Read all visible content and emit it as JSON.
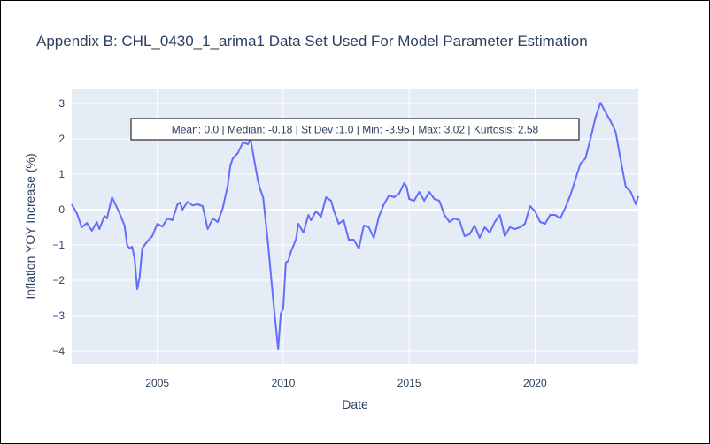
{
  "chart_data": {
    "type": "line",
    "title": "Appendix B: CHL_0430_1_arima1 Data Set Used For Model Parameter Estimation",
    "xlabel": "Date",
    "ylabel": "Inflation YOY Increase (%)",
    "annotation": "Mean: 0.0 | Median: -0.18 | St Dev :1.0 | Min: -3.95 | Max: 3.02 | Kurtosis: 2.58",
    "xlim": [
      2001.6,
      2024.1
    ],
    "ylim": [
      -4.35,
      3.4
    ],
    "x_ticks": [
      2005,
      2010,
      2015,
      2020
    ],
    "x_tick_labels": [
      "2005",
      "2010",
      "2015",
      "2020"
    ],
    "y_ticks": [
      3,
      2,
      1,
      0,
      -1,
      -2,
      -3,
      -4
    ],
    "y_tick_labels": [
      "3",
      "2",
      "1",
      "0",
      "−1",
      "−2",
      "−3",
      "−4"
    ],
    "grid": true,
    "colors": {
      "line": "#636efa",
      "plot_bg": "#e5ecf6",
      "text": "#2a3f5f"
    },
    "series": [
      {
        "x": [
          2001.6,
          2001.8,
          2002.0,
          2002.2,
          2002.4,
          2002.6,
          2002.7,
          2002.9,
          2003.0,
          2003.2,
          2003.4,
          2003.5,
          2003.7,
          2003.8,
          2003.9,
          2004.0,
          2004.1,
          2004.2,
          2004.3,
          2004.4,
          2004.6,
          2004.8,
          2005.0,
          2005.2,
          2005.4,
          2005.6,
          2005.8,
          2005.9,
          2006.0,
          2006.2,
          2006.4,
          2006.6,
          2006.8,
          2007.0,
          2007.2,
          2007.4,
          2007.6,
          2007.8,
          2007.9,
          2008.0,
          2008.2,
          2008.4,
          2008.6,
          2008.7,
          2008.9,
          2009.0,
          2009.1,
          2009.2,
          2009.3,
          2009.4,
          2009.6,
          2009.8,
          2009.9,
          2010.0,
          2010.1,
          2010.2,
          2010.3,
          2010.5,
          2010.6,
          2010.8,
          2011.0,
          2011.1,
          2011.3,
          2011.5,
          2011.7,
          2011.9,
          2012.0,
          2012.2,
          2012.4,
          2012.6,
          2012.8,
          2013.0,
          2013.2,
          2013.4,
          2013.6,
          2013.8,
          2014.0,
          2014.2,
          2014.4,
          2014.6,
          2014.8,
          2014.9,
          2015.0,
          2015.2,
          2015.4,
          2015.6,
          2015.8,
          2016.0,
          2016.2,
          2016.4,
          2016.6,
          2016.8,
          2017.0,
          2017.2,
          2017.4,
          2017.6,
          2017.8,
          2018.0,
          2018.2,
          2018.4,
          2018.6,
          2018.8,
          2019.0,
          2019.2,
          2019.4,
          2019.6,
          2019.8,
          2020.0,
          2020.2,
          2020.4,
          2020.6,
          2020.8,
          2021.0,
          2021.2,
          2021.4,
          2021.6,
          2021.8,
          2022.0,
          2022.2,
          2022.4,
          2022.6,
          2022.8,
          2023.0,
          2023.2,
          2023.4,
          2023.6,
          2023.8,
          2024.0,
          2024.1
        ],
        "y": [
          0.15,
          -0.1,
          -0.5,
          -0.38,
          -0.6,
          -0.35,
          -0.55,
          -0.18,
          -0.25,
          0.35,
          0.05,
          -0.1,
          -0.45,
          -1.0,
          -1.1,
          -1.05,
          -1.4,
          -2.25,
          -1.9,
          -1.1,
          -0.9,
          -0.75,
          -0.4,
          -0.48,
          -0.25,
          -0.3,
          0.15,
          0.2,
          0.0,
          0.22,
          0.12,
          0.15,
          0.1,
          -0.55,
          -0.25,
          -0.35,
          0.05,
          0.7,
          1.25,
          1.45,
          1.6,
          1.9,
          1.85,
          2.0,
          1.2,
          0.8,
          0.55,
          0.35,
          -0.3,
          -1.0,
          -2.55,
          -3.95,
          -2.95,
          -2.8,
          -1.5,
          -1.45,
          -1.2,
          -0.85,
          -0.4,
          -0.65,
          -0.15,
          -0.3,
          -0.05,
          -0.2,
          0.35,
          0.25,
          0.0,
          -0.4,
          -0.3,
          -0.85,
          -0.85,
          -1.1,
          -0.45,
          -0.5,
          -0.8,
          -0.2,
          0.15,
          0.4,
          0.35,
          0.45,
          0.75,
          0.65,
          0.3,
          0.25,
          0.5,
          0.25,
          0.5,
          0.3,
          0.25,
          -0.15,
          -0.35,
          -0.25,
          -0.3,
          -0.75,
          -0.7,
          -0.45,
          -0.8,
          -0.5,
          -0.65,
          -0.35,
          -0.15,
          -0.75,
          -0.5,
          -0.55,
          -0.5,
          -0.4,
          0.1,
          -0.05,
          -0.35,
          -0.4,
          -0.15,
          -0.15,
          -0.25,
          0.05,
          0.4,
          0.85,
          1.3,
          1.45,
          2.0,
          2.6,
          3.02,
          2.75,
          2.5,
          2.2,
          1.4,
          0.65,
          0.5,
          0.15,
          0.38
        ]
      }
    ]
  }
}
